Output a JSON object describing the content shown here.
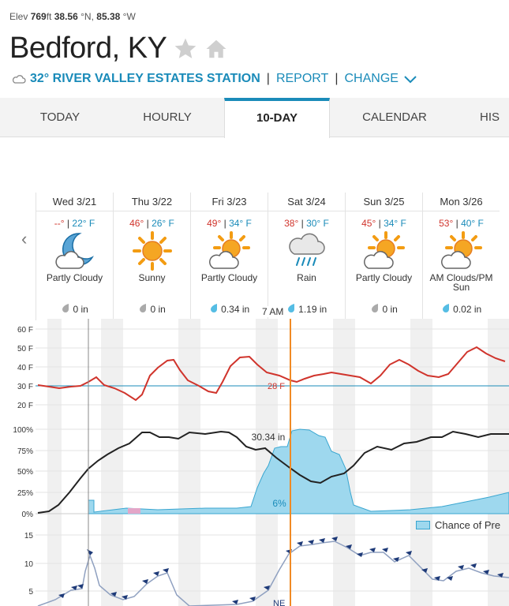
{
  "header": {
    "elev_label": "Elev",
    "elev_value": "769",
    "elev_unit": "ft",
    "lat_value": "38.56",
    "lat_unit": "°N,",
    "lon_value": "85.38",
    "lon_unit": "°W",
    "city": "Bedford, KY",
    "station": "32° RIVER VALLEY ESTATES STATION",
    "separator": "|",
    "report_link": "REPORT",
    "change_link": "CHANGE"
  },
  "tabs": [
    {
      "label": "TODAY"
    },
    {
      "label": "HOURLY"
    },
    {
      "label": "10-DAY",
      "active": true
    },
    {
      "label": "CALENDAR"
    },
    {
      "label": "HIS"
    }
  ],
  "days": [
    {
      "date": "Wed 3/21",
      "hi": "--°",
      "lo": "22° F",
      "icon": "moon-cloud-icon",
      "cond": "Partly Cloudy",
      "precip": "0 in"
    },
    {
      "date": "Thu 3/22",
      "hi": "46°",
      "lo": "26° F",
      "icon": "sun-icon",
      "cond": "Sunny",
      "precip": "0 in"
    },
    {
      "date": "Fri 3/23",
      "hi": "49°",
      "lo": "34° F",
      "icon": "partly-cloudy-icon",
      "cond": "Partly Cloudy",
      "precip": "0.34 in"
    },
    {
      "date": "Sat 3/24",
      "hi": "38°",
      "lo": "30° F",
      "icon": "rain-icon",
      "cond": "Rain",
      "precip": "1.19 in"
    },
    {
      "date": "Sun 3/25",
      "hi": "45°",
      "lo": "34° F",
      "icon": "partly-cloudy-icon",
      "cond": "Partly Cloudy",
      "precip": "0 in"
    },
    {
      "date": "Mon 3/26",
      "hi": "53°",
      "lo": "40° F",
      "icon": "partly-cloudy-icon",
      "cond": "AM Clouds/PM Sun",
      "precip": "0.02 in"
    }
  ],
  "temp_separator": "|",
  "graph": {
    "cursor_time": "7 AM",
    "temp_axis": [
      "60 F",
      "50 F",
      "40 F",
      "30 F",
      "20 F"
    ],
    "pct_axis": [
      "100%",
      "75%",
      "50%",
      "25%",
      "0%"
    ],
    "wind_axis": [
      "15",
      "10",
      "5"
    ],
    "temp_readout": "28 F",
    "precip_accum_readout": "30.34 in",
    "chance_readout": "6%",
    "wind_readout": "NE",
    "legend_label": "Chance of Pre",
    "colors": {
      "temp_line": "#d0342c",
      "freeze_line": "#1a8bb9",
      "humidity_line": "#222222",
      "precip_fill": "#9ed8ee",
      "cursor": "#f08a24",
      "wind": "#1e3a78"
    }
  }
}
